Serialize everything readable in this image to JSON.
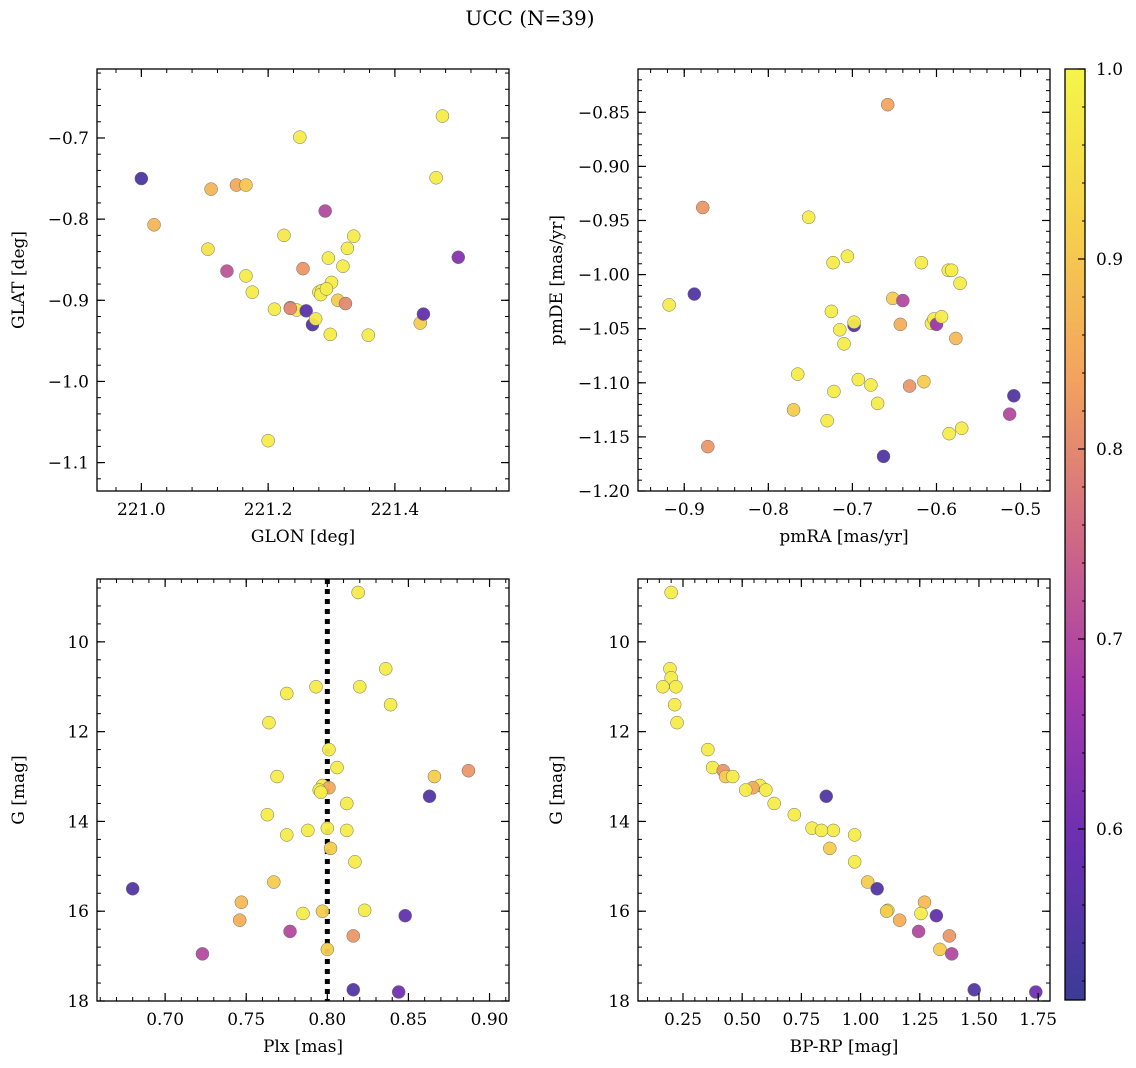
{
  "figure": {
    "title": "UCC (N=39)"
  },
  "chart_data": [
    {
      "type": "scatter",
      "xlabel": "GLON [deg]",
      "ylabel": "GLAT [deg]",
      "xlim": [
        220.93,
        221.58
      ],
      "ylim": [
        -1.135,
        -0.615
      ],
      "xticks": [
        221.0,
        221.2,
        221.4
      ],
      "xtick_labels": [
        "221.0",
        "221.2",
        "221.4"
      ],
      "yticks": [
        -1.1,
        -1.0,
        -0.9,
        -0.8,
        -0.7
      ],
      "ytick_labels": [
        "−1.1",
        "−1.0",
        "−0.9",
        "−0.8",
        "−0.7"
      ],
      "points": [
        {
          "x": 221.0,
          "y": -0.75,
          "c": 0.54
        },
        {
          "x": 221.02,
          "y": -0.807,
          "c": 0.87
        },
        {
          "x": 221.105,
          "y": -0.837,
          "c": 0.96
        },
        {
          "x": 221.11,
          "y": -0.763,
          "c": 0.87
        },
        {
          "x": 221.135,
          "y": -0.864,
          "c": 0.72
        },
        {
          "x": 221.15,
          "y": -0.758,
          "c": 0.85
        },
        {
          "x": 221.165,
          "y": -0.758,
          "c": 0.9
        },
        {
          "x": 221.165,
          "y": -0.87,
          "c": 0.98
        },
        {
          "x": 221.175,
          "y": -0.89,
          "c": 0.98
        },
        {
          "x": 221.2,
          "y": -1.073,
          "c": 0.98
        },
        {
          "x": 221.21,
          "y": -0.911,
          "c": 0.98
        },
        {
          "x": 221.225,
          "y": -0.82,
          "c": 0.97
        },
        {
          "x": 221.235,
          "y": -0.909,
          "c": 0.82
        },
        {
          "x": 221.245,
          "y": -0.912,
          "c": 0.97
        },
        {
          "x": 221.25,
          "y": -0.699,
          "c": 0.98
        },
        {
          "x": 221.255,
          "y": -0.861,
          "c": 0.82
        },
        {
          "x": 221.26,
          "y": -0.913,
          "c": 0.56
        },
        {
          "x": 221.27,
          "y": -0.93,
          "c": 0.55
        },
        {
          "x": 221.275,
          "y": -0.923,
          "c": 0.97
        },
        {
          "x": 221.28,
          "y": -0.89,
          "c": 0.98
        },
        {
          "x": 221.285,
          "y": -0.888,
          "c": 0.98
        },
        {
          "x": 221.29,
          "y": -0.79,
          "c": 0.7
        },
        {
          "x": 221.295,
          "y": -0.848,
          "c": 0.98
        },
        {
          "x": 221.298,
          "y": -0.942,
          "c": 0.98
        },
        {
          "x": 221.3,
          "y": -0.878,
          "c": 0.98
        },
        {
          "x": 221.31,
          "y": -0.9,
          "c": 0.91
        },
        {
          "x": 221.318,
          "y": -0.858,
          "c": 0.98
        },
        {
          "x": 221.322,
          "y": -0.904,
          "c": 0.8
        },
        {
          "x": 221.325,
          "y": -0.836,
          "c": 0.98
        },
        {
          "x": 221.335,
          "y": -0.821,
          "c": 0.98
        },
        {
          "x": 221.358,
          "y": -0.943,
          "c": 0.98
        },
        {
          "x": 221.44,
          "y": -0.928,
          "c": 0.91
        },
        {
          "x": 221.445,
          "y": -0.917,
          "c": 0.58
        },
        {
          "x": 221.465,
          "y": -0.749,
          "c": 0.98
        },
        {
          "x": 221.475,
          "y": -0.673,
          "c": 0.98
        },
        {
          "x": 221.5,
          "y": -0.847,
          "c": 0.63
        },
        {
          "x": 221.235,
          "y": -0.91,
          "c": 0.8
        },
        {
          "x": 221.283,
          "y": -0.893,
          "c": 0.98
        },
        {
          "x": 221.292,
          "y": -0.886,
          "c": 0.98
        }
      ]
    },
    {
      "type": "scatter",
      "xlabel": "pmRA [mas/yr]",
      "ylabel": "pmDE [mas/yr]",
      "xlim": [
        -0.955,
        -0.465
      ],
      "ylim": [
        -1.2,
        -0.81
      ],
      "xticks": [
        -0.9,
        -0.8,
        -0.7,
        -0.6,
        -0.5
      ],
      "xtick_labels": [
        "−0.9",
        "−0.8",
        "−0.7",
        "−0.6",
        "−0.5"
      ],
      "yticks": [
        -1.2,
        -1.15,
        -1.1,
        -1.05,
        -1.0,
        -0.95,
        -0.9,
        -0.85
      ],
      "ytick_labels": [
        "−1.20",
        "−1.15",
        "−1.10",
        "−1.05",
        "−1.00",
        "−0.95",
        "−0.90",
        "−0.85"
      ],
      "points": [
        {
          "x": -0.918,
          "y": -1.028,
          "c": 0.98
        },
        {
          "x": -0.888,
          "y": -1.018,
          "c": 0.55
        },
        {
          "x": -0.878,
          "y": -0.938,
          "c": 0.82
        },
        {
          "x": -0.872,
          "y": -1.159,
          "c": 0.82
        },
        {
          "x": -0.77,
          "y": -1.125,
          "c": 0.91
        },
        {
          "x": -0.765,
          "y": -1.092,
          "c": 0.98
        },
        {
          "x": -0.752,
          "y": -0.947,
          "c": 0.98
        },
        {
          "x": -0.73,
          "y": -1.135,
          "c": 0.98
        },
        {
          "x": -0.725,
          "y": -1.034,
          "c": 0.98
        },
        {
          "x": -0.723,
          "y": -0.989,
          "c": 0.98
        },
        {
          "x": -0.722,
          "y": -1.108,
          "c": 0.98
        },
        {
          "x": -0.715,
          "y": -1.051,
          "c": 0.98
        },
        {
          "x": -0.71,
          "y": -1.064,
          "c": 0.98
        },
        {
          "x": -0.706,
          "y": -0.983,
          "c": 0.98
        },
        {
          "x": -0.698,
          "y": -1.047,
          "c": 0.55
        },
        {
          "x": -0.698,
          "y": -1.044,
          "c": 0.98
        },
        {
          "x": -0.693,
          "y": -1.097,
          "c": 0.98
        },
        {
          "x": -0.678,
          "y": -1.102,
          "c": 0.98
        },
        {
          "x": -0.67,
          "y": -1.119,
          "c": 0.98
        },
        {
          "x": -0.663,
          "y": -1.168,
          "c": 0.55
        },
        {
          "x": -0.658,
          "y": -0.843,
          "c": 0.84
        },
        {
          "x": -0.652,
          "y": -1.022,
          "c": 0.91
        },
        {
          "x": -0.643,
          "y": -1.046,
          "c": 0.86
        },
        {
          "x": -0.64,
          "y": -1.024,
          "c": 0.7
        },
        {
          "x": -0.632,
          "y": -1.103,
          "c": 0.82
        },
        {
          "x": -0.618,
          "y": -0.989,
          "c": 0.98
        },
        {
          "x": -0.615,
          "y": -1.099,
          "c": 0.91
        },
        {
          "x": -0.606,
          "y": -1.045,
          "c": 0.98
        },
        {
          "x": -0.603,
          "y": -1.041,
          "c": 0.98
        },
        {
          "x": -0.6,
          "y": -1.046,
          "c": 0.66
        },
        {
          "x": -0.594,
          "y": -1.039,
          "c": 0.98
        },
        {
          "x": -0.586,
          "y": -0.996,
          "c": 0.98
        },
        {
          "x": -0.585,
          "y": -1.147,
          "c": 0.98
        },
        {
          "x": -0.582,
          "y": -0.996,
          "c": 0.98
        },
        {
          "x": -0.577,
          "y": -1.059,
          "c": 0.88
        },
        {
          "x": -0.572,
          "y": -1.008,
          "c": 0.98
        },
        {
          "x": -0.57,
          "y": -1.142,
          "c": 0.98
        },
        {
          "x": -0.513,
          "y": -1.129,
          "c": 0.7
        },
        {
          "x": -0.508,
          "y": -1.112,
          "c": 0.55
        }
      ]
    },
    {
      "type": "scatter",
      "xlabel": "Plx [mas]",
      "ylabel": "G [mag]",
      "xlim": [
        0.658,
        0.912
      ],
      "ylim": [
        18.0,
        8.6
      ],
      "y_inverted": true,
      "xticks": [
        0.7,
        0.75,
        0.8,
        0.85,
        0.9
      ],
      "xtick_labels": [
        "0.70",
        "0.75",
        "0.80",
        "0.85",
        "0.90"
      ],
      "yticks": [
        10,
        12,
        14,
        16,
        18
      ],
      "ytick_labels": [
        "10",
        "12",
        "14",
        "16",
        "18"
      ],
      "vline": {
        "x": 0.8,
        "style": "dotted",
        "color": "#000000"
      },
      "points": [
        {
          "x": 0.819,
          "y": 8.9,
          "c": 0.98
        },
        {
          "x": 0.836,
          "y": 10.6,
          "c": 0.98
        },
        {
          "x": 0.793,
          "y": 11.0,
          "c": 0.98
        },
        {
          "x": 0.82,
          "y": 11.0,
          "c": 0.98
        },
        {
          "x": 0.775,
          "y": 11.15,
          "c": 0.98
        },
        {
          "x": 0.839,
          "y": 11.4,
          "c": 0.98
        },
        {
          "x": 0.764,
          "y": 11.8,
          "c": 0.98
        },
        {
          "x": 0.801,
          "y": 12.4,
          "c": 0.98
        },
        {
          "x": 0.806,
          "y": 12.8,
          "c": 0.98
        },
        {
          "x": 0.887,
          "y": 12.87,
          "c": 0.82
        },
        {
          "x": 0.866,
          "y": 13.0,
          "c": 0.91
        },
        {
          "x": 0.769,
          "y": 13.0,
          "c": 0.98
        },
        {
          "x": 0.797,
          "y": 13.2,
          "c": 0.98
        },
        {
          "x": 0.801,
          "y": 13.25,
          "c": 0.85
        },
        {
          "x": 0.795,
          "y": 13.3,
          "c": 0.98
        },
        {
          "x": 0.796,
          "y": 13.35,
          "c": 0.98
        },
        {
          "x": 0.863,
          "y": 13.44,
          "c": 0.55
        },
        {
          "x": 0.812,
          "y": 13.6,
          "c": 0.98
        },
        {
          "x": 0.763,
          "y": 13.85,
          "c": 0.98
        },
        {
          "x": 0.8,
          "y": 14.15,
          "c": 0.98
        },
        {
          "x": 0.788,
          "y": 14.2,
          "c": 0.98
        },
        {
          "x": 0.812,
          "y": 14.2,
          "c": 0.98
        },
        {
          "x": 0.775,
          "y": 14.3,
          "c": 0.98
        },
        {
          "x": 0.802,
          "y": 14.6,
          "c": 0.91
        },
        {
          "x": 0.817,
          "y": 14.9,
          "c": 0.98
        },
        {
          "x": 0.767,
          "y": 15.35,
          "c": 0.91
        },
        {
          "x": 0.68,
          "y": 15.5,
          "c": 0.55
        },
        {
          "x": 0.747,
          "y": 15.8,
          "c": 0.88
        },
        {
          "x": 0.823,
          "y": 15.98,
          "c": 0.98
        },
        {
          "x": 0.797,
          "y": 16.0,
          "c": 0.91
        },
        {
          "x": 0.785,
          "y": 16.05,
          "c": 0.98
        },
        {
          "x": 0.848,
          "y": 16.1,
          "c": 0.58
        },
        {
          "x": 0.746,
          "y": 16.2,
          "c": 0.86
        },
        {
          "x": 0.777,
          "y": 16.45,
          "c": 0.7
        },
        {
          "x": 0.816,
          "y": 16.55,
          "c": 0.82
        },
        {
          "x": 0.8,
          "y": 16.85,
          "c": 0.91
        },
        {
          "x": 0.723,
          "y": 16.95,
          "c": 0.7
        },
        {
          "x": 0.816,
          "y": 17.75,
          "c": 0.55
        },
        {
          "x": 0.844,
          "y": 17.8,
          "c": 0.6
        }
      ]
    },
    {
      "type": "scatter",
      "xlabel": "BP-RP [mag]",
      "ylabel": "G [mag]",
      "xlim": [
        0.06,
        1.8
      ],
      "ylim": [
        18.0,
        8.6
      ],
      "y_inverted": true,
      "xticks": [
        0.25,
        0.5,
        0.75,
        1.0,
        1.25,
        1.5,
        1.75
      ],
      "xtick_labels": [
        "0.25",
        "0.50",
        "0.75",
        "1.00",
        "1.25",
        "1.50",
        "1.75"
      ],
      "yticks": [
        10,
        12,
        14,
        16,
        18
      ],
      "ytick_labels": [
        "10",
        "12",
        "14",
        "16",
        "18"
      ],
      "points": [
        {
          "x": 0.2,
          "y": 8.9,
          "c": 0.98
        },
        {
          "x": 0.195,
          "y": 10.6,
          "c": 0.98
        },
        {
          "x": 0.2,
          "y": 10.8,
          "c": 0.98
        },
        {
          "x": 0.165,
          "y": 11.0,
          "c": 0.98
        },
        {
          "x": 0.22,
          "y": 11.0,
          "c": 0.98
        },
        {
          "x": 0.215,
          "y": 11.4,
          "c": 0.98
        },
        {
          "x": 0.225,
          "y": 11.8,
          "c": 0.98
        },
        {
          "x": 0.355,
          "y": 12.4,
          "c": 0.98
        },
        {
          "x": 0.375,
          "y": 12.8,
          "c": 0.98
        },
        {
          "x": 0.42,
          "y": 12.87,
          "c": 0.82
        },
        {
          "x": 0.43,
          "y": 13.0,
          "c": 0.91
        },
        {
          "x": 0.46,
          "y": 13.0,
          "c": 0.98
        },
        {
          "x": 0.575,
          "y": 13.2,
          "c": 0.98
        },
        {
          "x": 0.545,
          "y": 13.25,
          "c": 0.85
        },
        {
          "x": 0.6,
          "y": 13.3,
          "c": 0.98
        },
        {
          "x": 0.515,
          "y": 13.3,
          "c": 0.98
        },
        {
          "x": 0.855,
          "y": 13.44,
          "c": 0.55
        },
        {
          "x": 0.635,
          "y": 13.6,
          "c": 0.98
        },
        {
          "x": 0.72,
          "y": 13.85,
          "c": 0.98
        },
        {
          "x": 0.795,
          "y": 14.15,
          "c": 0.98
        },
        {
          "x": 0.885,
          "y": 14.2,
          "c": 0.98
        },
        {
          "x": 0.835,
          "y": 14.2,
          "c": 0.98
        },
        {
          "x": 0.975,
          "y": 14.3,
          "c": 0.98
        },
        {
          "x": 0.87,
          "y": 14.6,
          "c": 0.91
        },
        {
          "x": 0.975,
          "y": 14.9,
          "c": 0.98
        },
        {
          "x": 1.03,
          "y": 15.35,
          "c": 0.91
        },
        {
          "x": 1.07,
          "y": 15.5,
          "c": 0.55
        },
        {
          "x": 1.27,
          "y": 15.8,
          "c": 0.88
        },
        {
          "x": 1.115,
          "y": 15.98,
          "c": 0.98
        },
        {
          "x": 1.11,
          "y": 16.0,
          "c": 0.91
        },
        {
          "x": 1.255,
          "y": 16.05,
          "c": 0.98
        },
        {
          "x": 1.32,
          "y": 16.1,
          "c": 0.58
        },
        {
          "x": 1.165,
          "y": 16.2,
          "c": 0.86
        },
        {
          "x": 1.245,
          "y": 16.45,
          "c": 0.7
        },
        {
          "x": 1.375,
          "y": 16.55,
          "c": 0.82
        },
        {
          "x": 1.335,
          "y": 16.85,
          "c": 0.91
        },
        {
          "x": 1.385,
          "y": 16.95,
          "c": 0.7
        },
        {
          "x": 1.48,
          "y": 17.75,
          "c": 0.55
        },
        {
          "x": 1.74,
          "y": 17.8,
          "c": 0.6
        }
      ]
    }
  ],
  "colorbar": {
    "colormap": "plasma",
    "range": [
      0.51,
      1.0
    ],
    "ticks": [
      0.6,
      0.7,
      0.8,
      0.9,
      1.0
    ],
    "tick_labels": [
      "0.6",
      "0.7",
      "0.8",
      "0.9",
      "1.0"
    ],
    "colors": [
      "#3b3c96",
      "#6a2fb0",
      "#a43aac",
      "#d06a84",
      "#f3a25f",
      "#f6d14c",
      "#f5f54a"
    ]
  }
}
